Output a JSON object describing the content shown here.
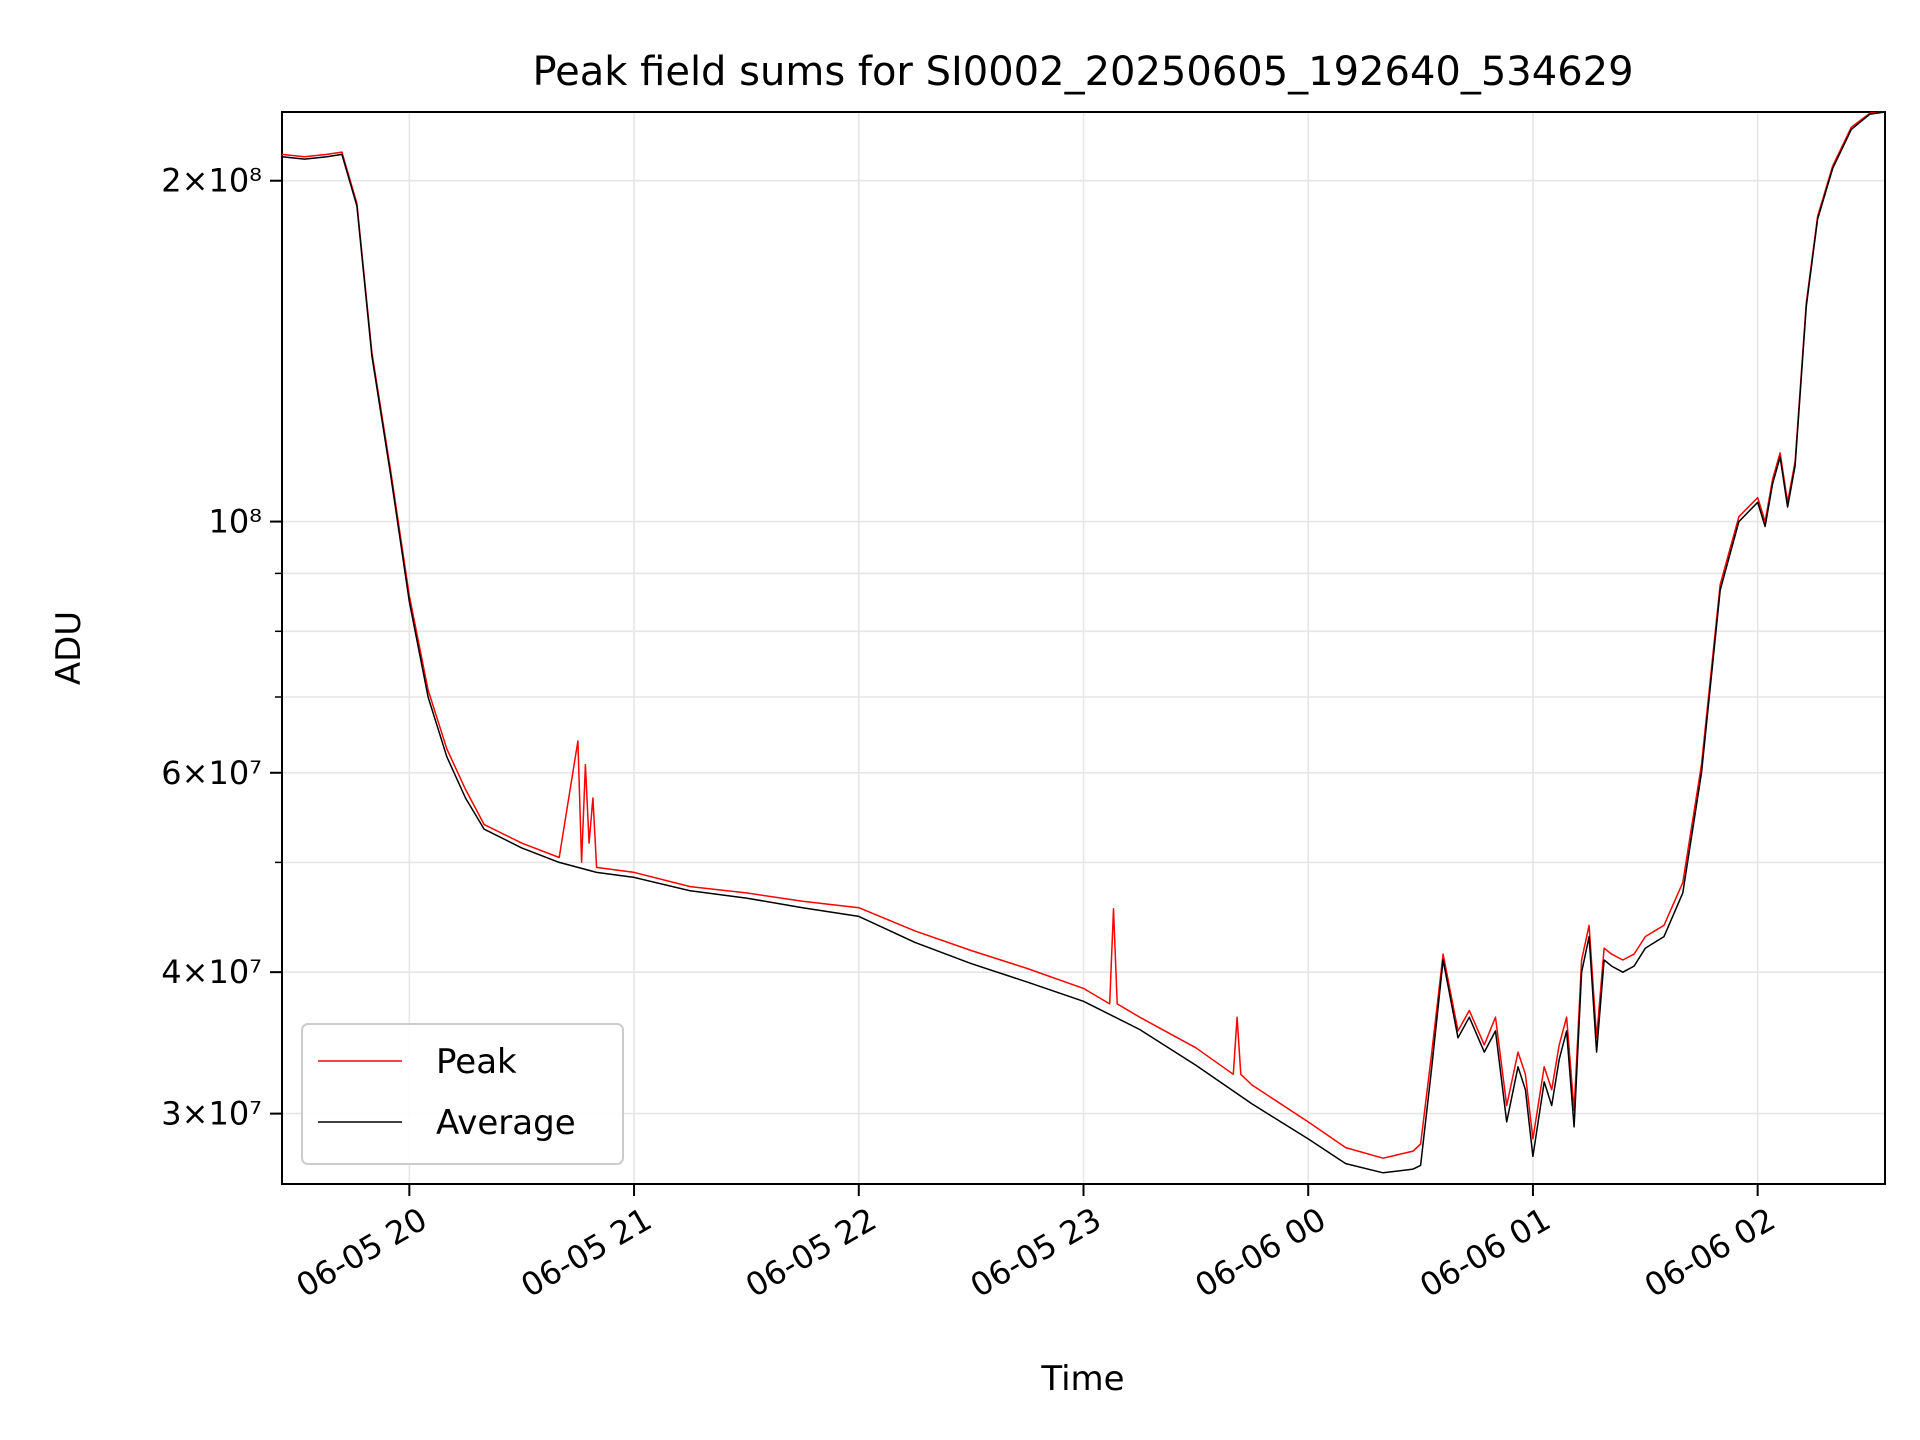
{
  "chart_data": {
    "type": "line",
    "title": "Peak field sums for SI0002_20250605_192640_534629",
    "xlabel": "Time",
    "ylabel": "ADU",
    "y_scale": "log",
    "ylim": [
      26000000,
      230000000
    ],
    "xlim": [
      "2025-06-05 19:26",
      "2025-06-06 02:34"
    ],
    "x_ticks": [
      "06-05 20",
      "06-05 21",
      "06-05 22",
      "06-05 23",
      "06-06 00",
      "06-06 01",
      "06-06 02"
    ],
    "y_ticks": [
      {
        "label": "3×10⁷",
        "value": 30000000
      },
      {
        "label": "4×10⁷",
        "value": 40000000
      },
      {
        "label": "6×10⁷",
        "value": 60000000
      },
      {
        "label": "10⁸",
        "value": 100000000
      },
      {
        "label": "2×10⁸",
        "value": 200000000
      }
    ],
    "grid": true,
    "legend_position": "lower-left",
    "colors": {
      "Peak": "#ff0000",
      "Average": "#000000"
    },
    "series": [
      {
        "name": "Average",
        "x": [
          "2025-06-05 19:26",
          "2025-06-05 19:32",
          "2025-06-05 19:38",
          "2025-06-05 19:42",
          "2025-06-05 19:46",
          "2025-06-05 19:50",
          "2025-06-05 19:55",
          "2025-06-05 20:00",
          "2025-06-05 20:05",
          "2025-06-05 20:10",
          "2025-06-05 20:15",
          "2025-06-05 20:20",
          "2025-06-05 20:30",
          "2025-06-05 20:40",
          "2025-06-05 20:50",
          "2025-06-05 21:00",
          "2025-06-05 21:15",
          "2025-06-05 21:30",
          "2025-06-05 21:45",
          "2025-06-05 22:00",
          "2025-06-05 22:15",
          "2025-06-05 22:30",
          "2025-06-05 22:45",
          "2025-06-05 23:00",
          "2025-06-05 23:15",
          "2025-06-05 23:30",
          "2025-06-05 23:45",
          "2025-06-06 00:00",
          "2025-06-06 00:10",
          "2025-06-06 00:20",
          "2025-06-06 00:28",
          "2025-06-06 00:30",
          "2025-06-06 00:33",
          "2025-06-06 00:36",
          "2025-06-06 00:40",
          "2025-06-06 00:43",
          "2025-06-06 00:47",
          "2025-06-06 00:50",
          "2025-06-06 00:53",
          "2025-06-06 00:56",
          "2025-06-06 00:58",
          "2025-06-06 01:00",
          "2025-06-06 01:03",
          "2025-06-06 01:05",
          "2025-06-06 01:07",
          "2025-06-06 01:09",
          "2025-06-06 01:11",
          "2025-06-06 01:13",
          "2025-06-06 01:15",
          "2025-06-06 01:17",
          "2025-06-06 01:19",
          "2025-06-06 01:21",
          "2025-06-06 01:24",
          "2025-06-06 01:27",
          "2025-06-06 01:30",
          "2025-06-06 01:35",
          "2025-06-06 01:40",
          "2025-06-06 01:45",
          "2025-06-06 01:50",
          "2025-06-06 01:55",
          "2025-06-06 02:00",
          "2025-06-06 02:02",
          "2025-06-06 02:04",
          "2025-06-06 02:06",
          "2025-06-06 02:08",
          "2025-06-06 02:10",
          "2025-06-06 02:13",
          "2025-06-06 02:16",
          "2025-06-06 02:20",
          "2025-06-06 02:25",
          "2025-06-06 02:30",
          "2025-06-06 02:34"
        ],
        "values": [
          210000000,
          209000000,
          210000000,
          211000000,
          190000000,
          140000000,
          110000000,
          85000000,
          70000000,
          62000000,
          57000000,
          53500000,
          51500000,
          50000000,
          49000000,
          48500000,
          47200000,
          46500000,
          45600000,
          44800000,
          42500000,
          40700000,
          39200000,
          37700000,
          35600000,
          33100000,
          30600000,
          28500000,
          27100000,
          26600000,
          26800000,
          27000000,
          33000000,
          41000000,
          35000000,
          36500000,
          34000000,
          35500000,
          29500000,
          33000000,
          31500000,
          27500000,
          32000000,
          30500000,
          33500000,
          35500000,
          29200000,
          40000000,
          43000000,
          34000000,
          41000000,
          40500000,
          40000000,
          40500000,
          42000000,
          43000000,
          47000000,
          60000000,
          87000000,
          100000000,
          104000000,
          99000000,
          108000000,
          114000000,
          103000000,
          112000000,
          155000000,
          185000000,
          205000000,
          222000000,
          229000000,
          230000000
        ]
      },
      {
        "name": "Peak",
        "x": [
          "2025-06-05 19:26",
          "2025-06-05 19:32",
          "2025-06-05 19:38",
          "2025-06-05 19:42",
          "2025-06-05 19:46",
          "2025-06-05 19:50",
          "2025-06-05 19:55",
          "2025-06-05 20:00",
          "2025-06-05 20:05",
          "2025-06-05 20:10",
          "2025-06-05 20:15",
          "2025-06-05 20:20",
          "2025-06-05 20:30",
          "2025-06-05 20:40",
          "2025-06-05 20:45",
          "2025-06-05 20:46",
          "2025-06-05 20:47",
          "2025-06-05 20:48",
          "2025-06-05 20:49",
          "2025-06-05 20:50",
          "2025-06-05 21:00",
          "2025-06-05 21:15",
          "2025-06-05 21:30",
          "2025-06-05 21:45",
          "2025-06-05 22:00",
          "2025-06-05 22:15",
          "2025-06-05 22:30",
          "2025-06-05 22:45",
          "2025-06-05 23:00",
          "2025-06-05 23:07",
          "2025-06-05 23:08",
          "2025-06-05 23:09",
          "2025-06-05 23:15",
          "2025-06-05 23:30",
          "2025-06-05 23:40",
          "2025-06-05 23:41",
          "2025-06-05 23:42",
          "2025-06-05 23:45",
          "2025-06-06 00:00",
          "2025-06-06 00:10",
          "2025-06-06 00:20",
          "2025-06-06 00:28",
          "2025-06-06 00:30",
          "2025-06-06 00:33",
          "2025-06-06 00:36",
          "2025-06-06 00:40",
          "2025-06-06 00:43",
          "2025-06-06 00:47",
          "2025-06-06 00:50",
          "2025-06-06 00:53",
          "2025-06-06 00:56",
          "2025-06-06 00:58",
          "2025-06-06 01:00",
          "2025-06-06 01:03",
          "2025-06-06 01:05",
          "2025-06-06 01:07",
          "2025-06-06 01:09",
          "2025-06-06 01:11",
          "2025-06-06 01:13",
          "2025-06-06 01:15",
          "2025-06-06 01:17",
          "2025-06-06 01:19",
          "2025-06-06 01:21",
          "2025-06-06 01:24",
          "2025-06-06 01:27",
          "2025-06-06 01:30",
          "2025-06-06 01:35",
          "2025-06-06 01:40",
          "2025-06-06 01:45",
          "2025-06-06 01:50",
          "2025-06-06 01:55",
          "2025-06-06 02:00",
          "2025-06-06 02:02",
          "2025-06-06 02:04",
          "2025-06-06 02:06",
          "2025-06-06 02:08",
          "2025-06-06 02:10",
          "2025-06-06 02:13",
          "2025-06-06 02:16",
          "2025-06-06 02:20",
          "2025-06-06 02:25",
          "2025-06-06 02:30",
          "2025-06-06 02:34"
        ],
        "values": [
          211000000,
          210000000,
          211000000,
          212000000,
          191000000,
          141000000,
          111000000,
          86000000,
          71000000,
          63000000,
          58000000,
          54000000,
          52000000,
          50500000,
          64000000,
          50000000,
          61000000,
          52000000,
          57000000,
          49500000,
          49000000,
          47600000,
          47000000,
          46200000,
          45600000,
          43500000,
          41800000,
          40300000,
          38700000,
          37500000,
          45500000,
          37500000,
          36500000,
          34300000,
          32500000,
          36500000,
          32500000,
          31800000,
          29500000,
          28000000,
          27400000,
          27800000,
          28200000,
          34000000,
          41500000,
          35500000,
          37000000,
          34500000,
          36500000,
          30500000,
          34000000,
          32500000,
          28500000,
          33000000,
          31500000,
          34500000,
          36500000,
          30200000,
          41000000,
          44000000,
          35000000,
          42000000,
          41500000,
          41000000,
          41500000,
          43000000,
          44000000,
          48000000,
          61000000,
          88000000,
          101000000,
          105000000,
          100000000,
          109000000,
          115000000,
          104000000,
          113000000,
          156000000,
          186000000,
          206000000,
          223000000,
          229500000,
          230000000
        ]
      }
    ]
  }
}
